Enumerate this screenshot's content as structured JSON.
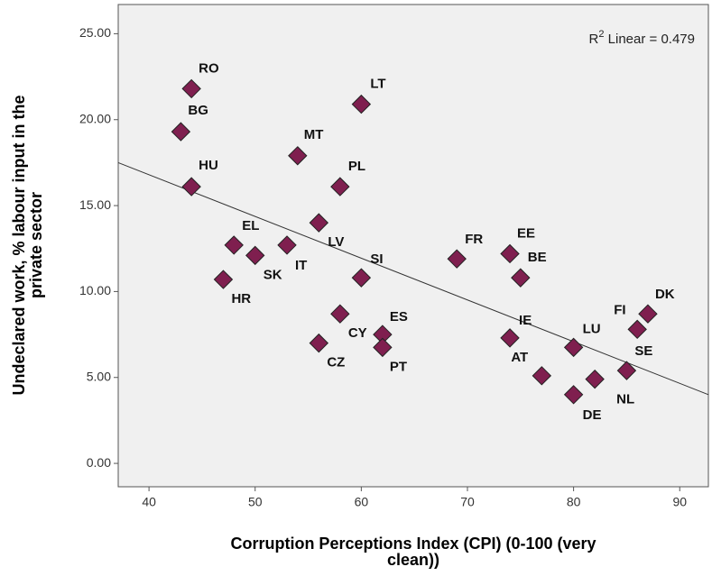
{
  "chart_data": {
    "type": "scatter",
    "x_label": [
      "Corruption Perceptions Index (CPI) (0-100 (very",
      "clean))"
    ],
    "y_label": [
      "Undeclared work, % labour input in the",
      "private sector"
    ],
    "annotation": {
      "base": "R",
      "sup": "2",
      "text": " Linear = 0.479"
    },
    "labels": [
      "RO",
      "BG",
      "HU",
      "EL",
      "SK",
      "HR",
      "IT",
      "MT",
      "LT",
      "PL",
      "LV",
      "SI",
      "CY",
      "CZ",
      "ES",
      "PT",
      "FR",
      "EE",
      "BE",
      "IE",
      "AT",
      "LU",
      "DE",
      "NL",
      "SE",
      "FI",
      "DK"
    ],
    "x": [
      44,
      43,
      44,
      48,
      50,
      47,
      53,
      54,
      60,
      58,
      56,
      60,
      58,
      56,
      62,
      62,
      69,
      74,
      75,
      74,
      77,
      80,
      80,
      82,
      85,
      86,
      87
    ],
    "values": [
      21.8,
      19.3,
      16.1,
      12.7,
      12.1,
      10.7,
      12.7,
      17.9,
      20.9,
      16.1,
      14.0,
      10.8,
      8.7,
      7.0,
      7.5,
      6.75,
      11.9,
      12.2,
      10.8,
      7.3,
      5.1,
      6.75,
      4.0,
      4.9,
      5.4,
      7.8,
      8.7
    ],
    "color": "#7f1f4f",
    "fit_line": {
      "x": [
        37.1,
        92.7
      ],
      "y": [
        17.5,
        4.0
      ]
    },
    "xlim": [
      37.1,
      92.7
    ],
    "xticks": [
      40,
      50,
      60,
      70,
      80,
      90
    ],
    "ylim": [
      -1.36,
      26.7
    ],
    "yticks": [
      {
        "value": 0,
        "label": "0.00"
      },
      {
        "value": 5,
        "label": "5.00"
      },
      {
        "value": 10,
        "label": "10.00"
      },
      {
        "value": 15,
        "label": "15.00"
      },
      {
        "value": 20,
        "label": "20.00"
      },
      {
        "value": 25,
        "label": "25.00"
      }
    ]
  }
}
